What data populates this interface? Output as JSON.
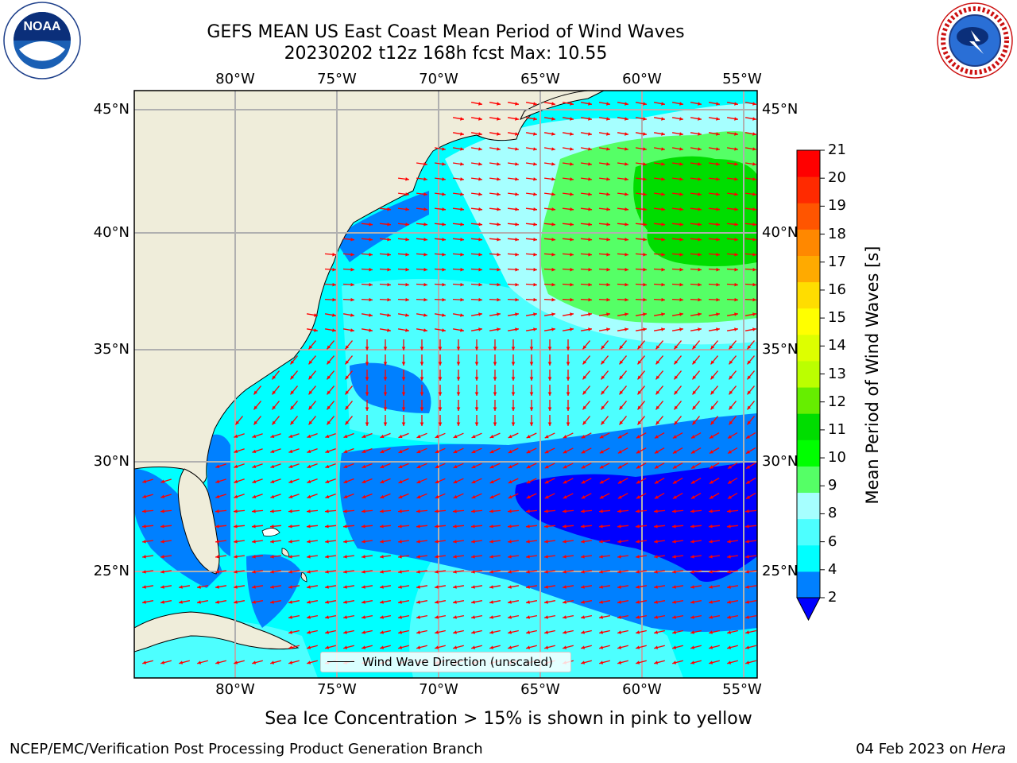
{
  "header": {
    "title_line1": "GEFS MEAN US East Coast Mean Period of Wind Waves",
    "title_line2": "20230202 t12z 168h fcst   Max: 10.55"
  },
  "logos": {
    "noaa_text": "NOAA",
    "noaa_ring_text": "NATIONAL OCEANIC AND ATMOSPHERIC ADMINISTRATION · U.S. DEPARTMENT OF COMMERCE",
    "nws_ring_text": "NATIONAL WEATHER SERVICE"
  },
  "map": {
    "lon_labels": [
      "80°W",
      "75°W",
      "70°W",
      "65°W",
      "60°W",
      "55°W"
    ],
    "lat_labels": [
      "45°N",
      "40°N",
      "35°N",
      "30°N",
      "25°N"
    ],
    "legend_label": "Wind Wave Direction (unscaled)",
    "colors": {
      "land": "#efedda",
      "ocean_2_4": "#0080ff",
      "ocean_4_6": "#00ffff",
      "ocean_6_8": "#4dffff",
      "ocean_8_9": "#a6ffff",
      "ocean_9_10": "#55ff66",
      "ocean_10_11": "#00dd00",
      "ocean_lt2": "#0000ff",
      "arrows": "#ff0000",
      "grid": "#b0b0b0"
    }
  },
  "colorbar": {
    "label": "Mean Period of Wind Waves [s]",
    "ticks": [
      "2",
      "4",
      "6",
      "8",
      "9",
      "10",
      "11",
      "12",
      "13",
      "14",
      "15",
      "16",
      "17",
      "18",
      "19",
      "20",
      "21"
    ],
    "colors": [
      "#0080ff",
      "#00ffff",
      "#4dffff",
      "#a6ffff",
      "#55ff66",
      "#00ff00",
      "#00dd00",
      "#66ee00",
      "#bbff00",
      "#ddff00",
      "#ffff00",
      "#ffdd00",
      "#ffaa00",
      "#ff8800",
      "#ff5500",
      "#ff2a00",
      "#ff0000"
    ],
    "extend_color": "#0000ff"
  },
  "notes": {
    "sea_ice": "Sea Ice Concentration > 15% is shown in pink to yellow"
  },
  "footer": {
    "left": "NCEP/EMC/Verification Post Processing Product Generation Branch",
    "date": "04 Feb 2023 on ",
    "machine": "Hera"
  }
}
